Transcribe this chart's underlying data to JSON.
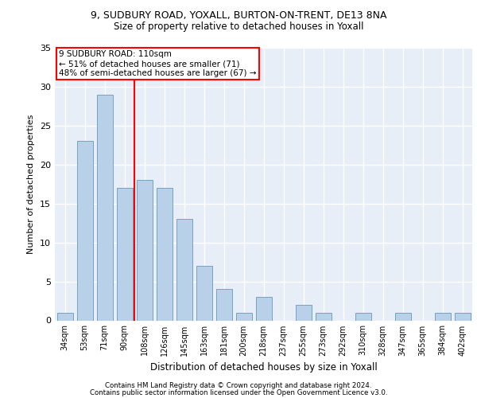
{
  "title1": "9, SUDBURY ROAD, YOXALL, BURTON-ON-TRENT, DE13 8NA",
  "title2": "Size of property relative to detached houses in Yoxall",
  "xlabel": "Distribution of detached houses by size in Yoxall",
  "ylabel": "Number of detached properties",
  "categories": [
    "34sqm",
    "53sqm",
    "71sqm",
    "90sqm",
    "108sqm",
    "126sqm",
    "145sqm",
    "163sqm",
    "181sqm",
    "200sqm",
    "218sqm",
    "237sqm",
    "255sqm",
    "273sqm",
    "292sqm",
    "310sqm",
    "328sqm",
    "347sqm",
    "365sqm",
    "384sqm",
    "402sqm"
  ],
  "values": [
    1,
    23,
    29,
    17,
    18,
    17,
    13,
    7,
    4,
    1,
    3,
    0,
    2,
    1,
    0,
    1,
    0,
    1,
    0,
    1,
    1
  ],
  "bar_color": "#b8d0e8",
  "bar_edge_color": "#6699bb",
  "vline_color": "red",
  "vline_x": 3.5,
  "annotation_text": "9 SUDBURY ROAD: 110sqm\n← 51% of detached houses are smaller (71)\n48% of semi-detached houses are larger (67) →",
  "annotation_box_color": "white",
  "annotation_box_edge_color": "red",
  "ylim": [
    0,
    35
  ],
  "yticks": [
    0,
    5,
    10,
    15,
    20,
    25,
    30,
    35
  ],
  "footer1": "Contains HM Land Registry data © Crown copyright and database right 2024.",
  "footer2": "Contains public sector information licensed under the Open Government Licence v3.0.",
  "bg_color": "#e8eef8",
  "grid_color": "white",
  "title1_fontsize": 9,
  "title2_fontsize": 8.5,
  "ylabel_fontsize": 8,
  "xlabel_fontsize": 8.5,
  "tick_fontsize": 7,
  "annotation_fontsize": 7.5,
  "footer_fontsize": 6.2
}
